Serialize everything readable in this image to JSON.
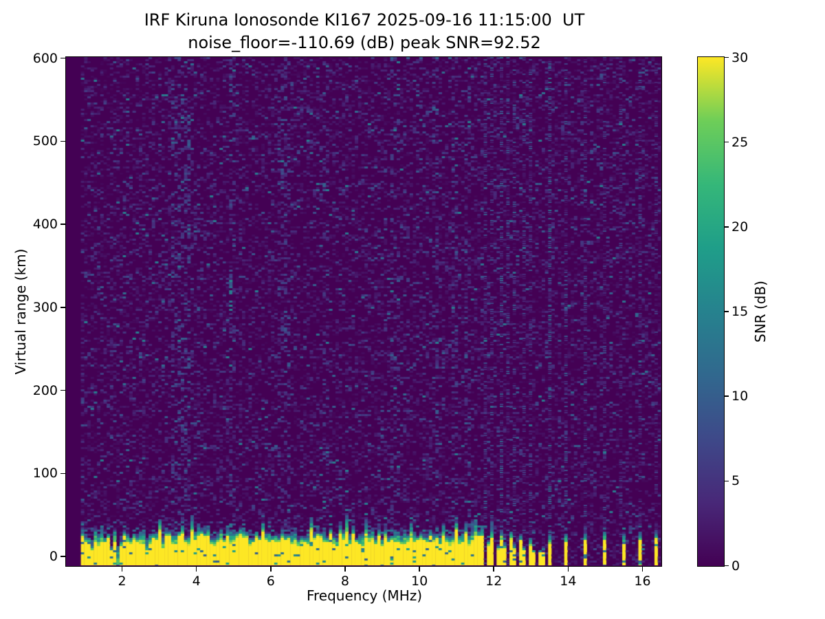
{
  "figure": {
    "title_line1": "IRF Kiruna Ionosonde KI167 2025-09-16 11:15:00  UT",
    "title_line2": "noise_floor=-110.69 (dB) peak SNR=92.52",
    "background": "#ffffff",
    "text_color": "#000000",
    "station": "KI167",
    "timestamp": "2025-09-16 11:15:00 UT",
    "noise_floor_db": -110.69,
    "peak_snr_db": 92.52
  },
  "chart_data": {
    "type": "heatmap",
    "title": "IRF Kiruna Ionosonde KI167 2025-09-16 11:15:00  UT",
    "subtitle": "noise_floor=-110.69 (dB) peak SNR=92.52",
    "xlabel": "Frequency (MHz)",
    "ylabel": "Virtual range (km)",
    "colorbar_label": "SNR (dB)",
    "xlim": [
      0.5,
      16.5
    ],
    "ylim": [
      -11,
      601
    ],
    "clim": [
      0,
      30
    ],
    "x_ticks": [
      2,
      4,
      6,
      8,
      10,
      12,
      14,
      16
    ],
    "y_ticks": [
      0,
      100,
      200,
      300,
      400,
      500,
      600
    ],
    "colorbar_ticks": [
      0,
      5,
      10,
      15,
      20,
      25,
      30
    ],
    "colormap": "viridis",
    "viridis_stops": [
      [
        0,
        "#440154"
      ],
      [
        0.125,
        "#482878"
      ],
      [
        0.25,
        "#3e4989"
      ],
      [
        0.375,
        "#31688e"
      ],
      [
        0.5,
        "#26828e"
      ],
      [
        0.625,
        "#1f9e89"
      ],
      [
        0.75,
        "#35b779"
      ],
      [
        0.875,
        "#6ece58"
      ],
      [
        1,
        "#fde725"
      ]
    ],
    "data_f_range": [
      0.9,
      16.5
    ],
    "f_step": 0.0867,
    "row_km": 2.5,
    "background_noise": {
      "fill_prob": 0.42,
      "mean_snr": 2.2,
      "bright_speck_prob": 0.015,
      "max_snr": 14
    },
    "ground_echo_band": {
      "f_start": 0.9,
      "f_end": 11.64,
      "bottom_km": -11,
      "top_km_min": 20,
      "top_km_max": 45,
      "cap_km": 7,
      "notch_prob": 0.06,
      "deep_notch_frac": 0.25,
      "saturated_snr": 30
    },
    "band_stripes": [
      {
        "f": 11.72,
        "h": 38
      },
      {
        "f": 11.85,
        "h": 20
      },
      {
        "f": 11.98,
        "h": 36
      },
      {
        "f": 12.1,
        "h": 14
      },
      {
        "f": 12.2,
        "h": 32
      },
      {
        "f": 12.33,
        "h": 16
      },
      {
        "f": 12.46,
        "h": 30
      },
      {
        "f": 12.59,
        "h": 13
      },
      {
        "f": 12.7,
        "h": 27
      },
      {
        "f": 12.83,
        "h": 11
      },
      {
        "f": 12.96,
        "h": 22
      },
      {
        "f": 13.1,
        "h": 8
      },
      {
        "f": 13.28,
        "h": 7
      },
      {
        "f": 13.38,
        "h": 6
      },
      {
        "f": 13.52,
        "h": 26
      },
      {
        "f": 13.98,
        "h": 28
      },
      {
        "f": 14.5,
        "h": 30
      },
      {
        "f": 14.96,
        "h": 30
      },
      {
        "f": 15.5,
        "h": 28
      },
      {
        "f": 15.96,
        "h": 30
      },
      {
        "f": 16.38,
        "h": 32
      }
    ],
    "rfi_columns": [
      {
        "f": 11.76,
        "s": 0.8
      },
      {
        "f": 11.98,
        "s": 0.7
      },
      {
        "f": 12.2,
        "s": 0.9
      },
      {
        "f": 12.41,
        "s": 0.7
      },
      {
        "f": 12.6,
        "s": 0.8
      },
      {
        "f": 12.81,
        "s": 0.6
      },
      {
        "f": 13.0,
        "s": 0.7
      },
      {
        "f": 13.48,
        "s": 1.0
      },
      {
        "f": 13.98,
        "s": 0.8
      },
      {
        "f": 14.48,
        "s": 0.7
      },
      {
        "f": 14.96,
        "s": 0.6
      },
      {
        "f": 15.43,
        "s": 0.5
      },
      {
        "f": 15.96,
        "s": 0.6
      },
      {
        "f": 16.35,
        "s": 0.5
      }
    ],
    "faint_noise_columns": [
      {
        "f": 3.6,
        "s": 0.35,
        "w": 0.25
      },
      {
        "f": 5.0,
        "s": 0.25,
        "w": 0.1
      },
      {
        "f": 6.35,
        "s": 0.35,
        "w": 0.15
      },
      {
        "f": 7.5,
        "s": 0.25,
        "w": 0.1
      },
      {
        "f": 9.35,
        "s": 0.25,
        "w": 0.1
      },
      {
        "f": 10.45,
        "s": 0.3,
        "w": 0.08
      },
      {
        "f": 10.95,
        "s": 0.3,
        "w": 0.08
      },
      {
        "f": 11.3,
        "s": 0.3,
        "w": 0.08
      }
    ],
    "echo_streaks": [
      {
        "f": 4.95,
        "km_bottom": 295,
        "km_top": 332,
        "snr": 13
      }
    ],
    "seed": 167
  }
}
